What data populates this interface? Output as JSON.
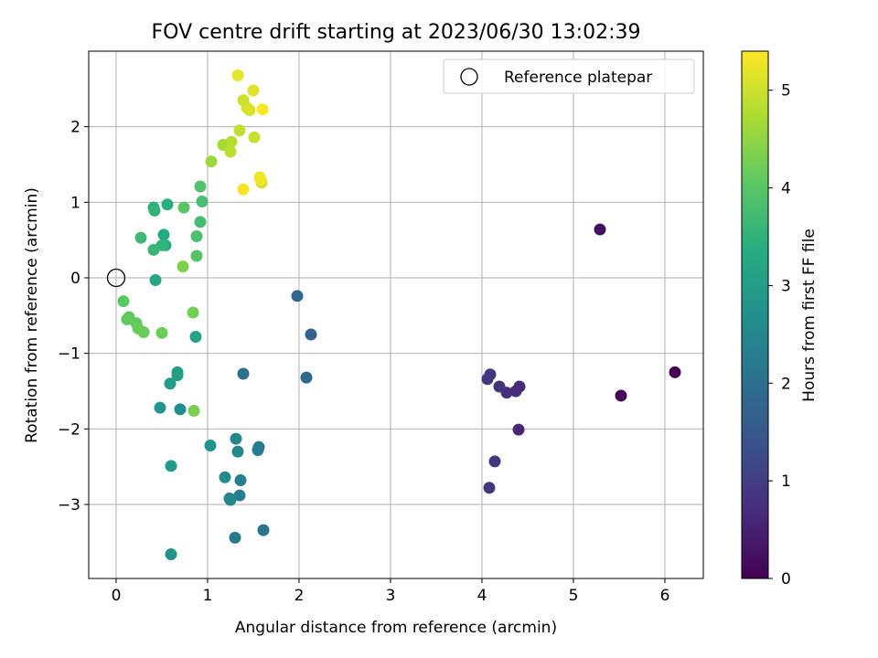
{
  "chart_data": {
    "type": "scatter",
    "title": "FOV centre drift starting at 2023/06/30 13:02:39",
    "xlabel": "Angular distance from reference (arcmin)",
    "ylabel": "Rotation from reference (arcmin)",
    "xlim": [
      -0.3,
      6.42
    ],
    "ylim": [
      -3.98,
      3.0
    ],
    "xticks": [
      0,
      1,
      2,
      3,
      4,
      5,
      6
    ],
    "yticks": [
      -3,
      -2,
      -1,
      0,
      1,
      2
    ],
    "grid": true,
    "legend": {
      "placement": "upper right",
      "entries": [
        "Reference platepar"
      ]
    },
    "colorbar": {
      "label": "Hours from first FF file",
      "range": [
        0,
        5.4
      ],
      "ticks": [
        0,
        1,
        2,
        3,
        4,
        5
      ],
      "colormap": "viridis"
    },
    "reference_point": {
      "x": 0,
      "y": 0,
      "label": "Reference platepar"
    },
    "series": [
      {
        "points": [
          {
            "x": 6.11,
            "y": -1.25,
            "c": 0.0
          },
          {
            "x": 5.52,
            "y": -1.56,
            "c": 0.1
          },
          {
            "x": 5.29,
            "y": 0.64,
            "c": 0.2
          },
          {
            "x": 4.4,
            "y": -2.01,
            "c": 0.6
          },
          {
            "x": 4.41,
            "y": -1.44,
            "c": 0.65
          },
          {
            "x": 4.37,
            "y": -1.5,
            "c": 0.7
          },
          {
            "x": 4.27,
            "y": -1.52,
            "c": 0.75
          },
          {
            "x": 4.19,
            "y": -1.44,
            "c": 0.8
          },
          {
            "x": 4.09,
            "y": -1.28,
            "c": 0.85
          },
          {
            "x": 4.06,
            "y": -1.34,
            "c": 0.9
          },
          {
            "x": 4.14,
            "y": -2.43,
            "c": 0.9
          },
          {
            "x": 4.08,
            "y": -2.78,
            "c": 0.85
          },
          {
            "x": 2.13,
            "y": -0.75,
            "c": 1.7
          },
          {
            "x": 1.98,
            "y": -0.24,
            "c": 1.8
          },
          {
            "x": 2.08,
            "y": -1.32,
            "c": 1.85
          },
          {
            "x": 1.39,
            "y": -1.27,
            "c": 2.0
          },
          {
            "x": 1.61,
            "y": -3.34,
            "c": 2.1
          },
          {
            "x": 1.3,
            "y": -3.44,
            "c": 2.15
          },
          {
            "x": 1.56,
            "y": -2.24,
            "c": 2.2
          },
          {
            "x": 1.55,
            "y": -2.28,
            "c": 2.25
          },
          {
            "x": 1.35,
            "y": -2.88,
            "c": 2.3
          },
          {
            "x": 1.36,
            "y": -2.68,
            "c": 2.35
          },
          {
            "x": 1.24,
            "y": -2.92,
            "c": 2.4
          },
          {
            "x": 1.25,
            "y": -2.94,
            "c": 2.45
          },
          {
            "x": 1.31,
            "y": -2.13,
            "c": 2.5
          },
          {
            "x": 1.33,
            "y": -2.3,
            "c": 2.55
          },
          {
            "x": 1.19,
            "y": -2.64,
            "c": 2.6
          },
          {
            "x": 0.7,
            "y": -1.74,
            "c": 2.7
          },
          {
            "x": 0.6,
            "y": -3.66,
            "c": 2.75
          },
          {
            "x": 1.03,
            "y": -2.22,
            "c": 2.8
          },
          {
            "x": 0.48,
            "y": -1.72,
            "c": 2.85
          },
          {
            "x": 0.6,
            "y": -2.49,
            "c": 2.9
          },
          {
            "x": 0.59,
            "y": -1.4,
            "c": 2.95
          },
          {
            "x": 0.67,
            "y": -1.25,
            "c": 3.0
          },
          {
            "x": 0.67,
            "y": -1.29,
            "c": 3.05
          },
          {
            "x": 0.87,
            "y": -0.78,
            "c": 3.1
          },
          {
            "x": 0.43,
            "y": -0.03,
            "c": 3.2
          },
          {
            "x": 0.52,
            "y": 0.57,
            "c": 3.3
          },
          {
            "x": 0.54,
            "y": 0.43,
            "c": 3.35
          },
          {
            "x": 0.56,
            "y": 0.97,
            "c": 3.4
          },
          {
            "x": 0.41,
            "y": 0.93,
            "c": 3.45
          },
          {
            "x": 0.42,
            "y": 0.89,
            "c": 3.5
          },
          {
            "x": 0.5,
            "y": 0.43,
            "c": 3.55
          },
          {
            "x": 0.41,
            "y": 0.37,
            "c": 3.6
          },
          {
            "x": 0.27,
            "y": 0.53,
            "c": 3.65
          },
          {
            "x": 0.92,
            "y": 0.74,
            "c": 3.75
          },
          {
            "x": 0.94,
            "y": 1.01,
            "c": 3.8
          },
          {
            "x": 0.88,
            "y": 0.55,
            "c": 3.85
          },
          {
            "x": 0.92,
            "y": 1.21,
            "c": 3.9
          },
          {
            "x": 0.88,
            "y": 0.29,
            "c": 3.95
          },
          {
            "x": 0.74,
            "y": 0.93,
            "c": 4.0
          },
          {
            "x": 0.08,
            "y": -0.31,
            "c": 4.05
          },
          {
            "x": 0.12,
            "y": -0.55,
            "c": 4.05
          },
          {
            "x": 0.14,
            "y": -0.52,
            "c": 4.1
          },
          {
            "x": 0.22,
            "y": -0.6,
            "c": 4.1
          },
          {
            "x": 0.24,
            "y": -0.67,
            "c": 4.15
          },
          {
            "x": 0.3,
            "y": -0.72,
            "c": 4.15
          },
          {
            "x": 0.5,
            "y": -0.73,
            "c": 4.2
          },
          {
            "x": 0.84,
            "y": -0.46,
            "c": 4.25
          },
          {
            "x": 0.85,
            "y": -1.76,
            "c": 4.3
          },
          {
            "x": 0.73,
            "y": 0.15,
            "c": 4.35
          },
          {
            "x": 1.04,
            "y": 1.54,
            "c": 4.6
          },
          {
            "x": 1.17,
            "y": 1.76,
            "c": 4.7
          },
          {
            "x": 1.26,
            "y": 1.8,
            "c": 4.8
          },
          {
            "x": 1.25,
            "y": 1.67,
            "c": 4.85
          },
          {
            "x": 1.35,
            "y": 1.95,
            "c": 4.9
          },
          {
            "x": 1.51,
            "y": 1.86,
            "c": 4.95
          },
          {
            "x": 1.59,
            "y": 1.26,
            "c": 5.0
          },
          {
            "x": 1.39,
            "y": 2.35,
            "c": 5.0
          },
          {
            "x": 1.43,
            "y": 2.25,
            "c": 5.05
          },
          {
            "x": 1.46,
            "y": 2.22,
            "c": 5.1
          },
          {
            "x": 1.5,
            "y": 2.48,
            "c": 5.15
          },
          {
            "x": 1.33,
            "y": 2.68,
            "c": 5.2
          },
          {
            "x": 1.57,
            "y": 1.33,
            "c": 5.25
          },
          {
            "x": 1.58,
            "y": 1.3,
            "c": 5.3
          },
          {
            "x": 1.39,
            "y": 1.17,
            "c": 5.35
          },
          {
            "x": 1.6,
            "y": 2.23,
            "c": 5.4
          }
        ]
      }
    ]
  }
}
